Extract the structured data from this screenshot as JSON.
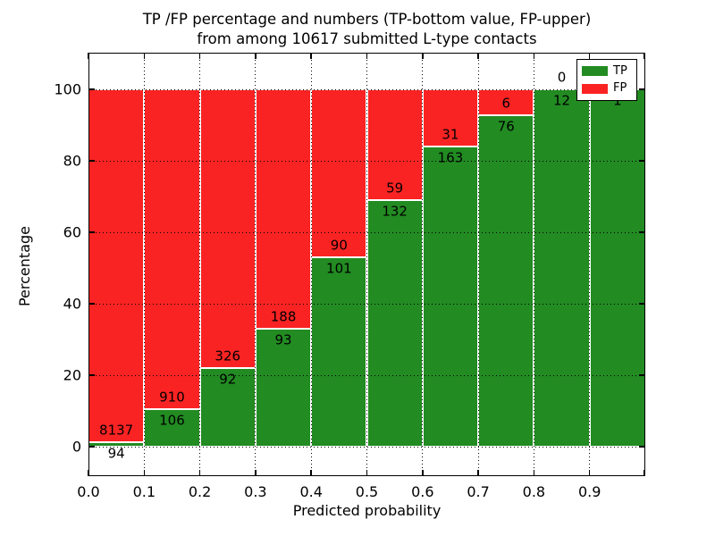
{
  "chart_data": {
    "type": "bar",
    "stacked": true,
    "title": "TP /FP percentage and numbers (TP-bottom value, FP-upper)\nfrom among 10617 submitted L-type contacts",
    "title_line1": "TP /FP percentage and numbers (TP-bottom value, FP-upper)",
    "title_line2": "from among 10617 submitted L-type contacts",
    "xlabel": "Predicted probability",
    "ylabel": "Percentage",
    "bins": [
      "0.0-0.1",
      "0.1-0.2",
      "0.2-0.3",
      "0.3-0.4",
      "0.4-0.5",
      "0.5-0.6",
      "0.6-0.7",
      "0.7-0.8",
      "0.8-0.9",
      "0.9-1.0"
    ],
    "series": [
      {
        "name": "TP",
        "color": "#228b22",
        "values": [
          94,
          106,
          92,
          93,
          101,
          132,
          163,
          76,
          12,
          1
        ]
      },
      {
        "name": "FP",
        "color": "#fa2323",
        "values": [
          8137,
          910,
          326,
          188,
          90,
          59,
          31,
          6,
          0,
          0
        ]
      }
    ],
    "tp_percent_heights": [
      1.1,
      10.4,
      22.0,
      33.1,
      52.9,
      69.1,
      84.0,
      92.7,
      100.0,
      100.0
    ],
    "x_tick_labels": [
      "0.0",
      "0.1",
      "0.2",
      "0.3",
      "0.4",
      "0.5",
      "0.6",
      "0.7",
      "0.8",
      "0.9"
    ],
    "y_tick_labels": [
      "0",
      "20",
      "40",
      "60",
      "80",
      "100"
    ],
    "y_ticks": [
      0,
      20,
      40,
      60,
      80,
      100
    ],
    "xlim": [
      0.0,
      1.0
    ],
    "ylim": [
      -8,
      110
    ],
    "grid": "dotted-black-over-bars",
    "bar_edge_color": "#ffffff",
    "legend": {
      "position": "upper right",
      "entries": [
        {
          "label": "TP",
          "color": "#228b22"
        },
        {
          "label": "FP",
          "color": "#fa2323"
        }
      ]
    }
  }
}
